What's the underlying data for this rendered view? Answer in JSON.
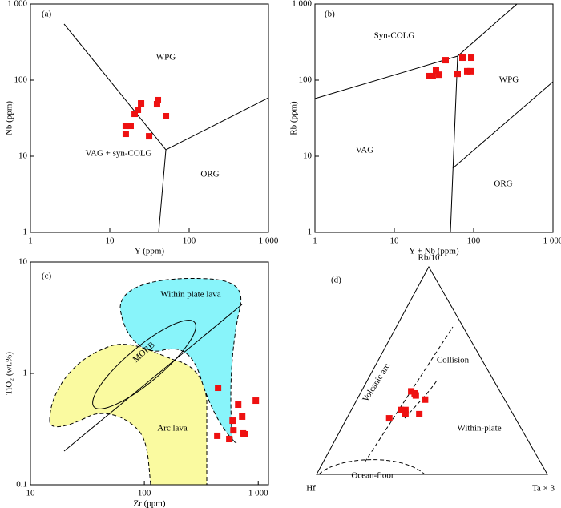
{
  "chart_data": [
    {
      "type": "scatter",
      "x_label": "Y (ppm)",
      "y_label": "Nb (ppm)",
      "log_x": true,
      "log_y": true,
      "xlim": [
        1,
        1000
      ],
      "ylim": [
        1,
        1000
      ],
      "xticks": [
        1,
        10,
        100,
        {
          "value": 1000,
          "label": "1 000"
        }
      ],
      "yticks": [
        1,
        10,
        100,
        {
          "value": 1000,
          "label": "1 000"
        }
      ],
      "color": "#ee1111",
      "x": [
        15.9,
        18.3,
        15.9,
        20.6,
        22.6,
        24.8,
        31.3,
        39.4,
        40.4,
        51
      ],
      "y": [
        25.1,
        25.1,
        19.7,
        36.1,
        40.8,
        49.5,
        18.3,
        48.3,
        54.6,
        33.6
      ],
      "annotations": [
        "(a)",
        "WPG",
        "VAG + syn-COLG",
        "ORG"
      ]
    },
    {
      "type": "scatter",
      "x_label": "Y + Nb (ppm)",
      "y_label": "Rb (ppm)",
      "log_x": true,
      "log_y": true,
      "xlim": [
        1,
        1000
      ],
      "ylim": [
        1,
        1000
      ],
      "xticks": [
        1,
        10,
        100,
        {
          "value": 1000,
          "label": "1 000"
        }
      ],
      "yticks": [
        1,
        10,
        100,
        {
          "value": 1000,
          "label": "1 000"
        }
      ],
      "color": "#ee1111",
      "x": [
        27.2,
        30.5,
        33.5,
        36.8,
        44.3,
        62.8,
        72.2,
        83,
        91.2,
        93.3
      ],
      "y": [
        113,
        113,
        134,
        118,
        183,
        121,
        197,
        131,
        131,
        197
      ],
      "annotations": [
        "(b)",
        "Syn-COLG",
        "WPG",
        "VAG",
        "ORG"
      ]
    },
    {
      "type": "scatter",
      "x_label": "Zr (ppm)",
      "y_label": "TiO₂ (wt.%)",
      "log_x": true,
      "log_y": true,
      "xlim": [
        10,
        1230
      ],
      "ylim": [
        0.1,
        10
      ],
      "xticks": [
        10,
        100,
        {
          "value": 1000,
          "label": "1 000"
        }
      ],
      "yticks": [
        0.1,
        1,
        10
      ],
      "color": "#ee1111",
      "x": [
        444,
        437,
        557,
        596,
        606,
        667,
        723,
        735,
        758,
        952
      ],
      "y": [
        0.742,
        0.275,
        0.257,
        0.376,
        0.308,
        0.524,
        0.409,
        0.289,
        0.284,
        0.569
      ],
      "annotations": [
        "(c)",
        "Within plate lava",
        "MORB",
        "Arc lava"
      ]
    },
    {
      "type": "ternary",
      "components": [
        "Rb/10",
        "Hf",
        "Ta × 3"
      ],
      "color": "#ee1111",
      "values": [
        [
          27,
          55,
          18
        ],
        [
          31,
          48,
          21
        ],
        [
          29,
          47,
          24
        ],
        [
          31,
          46,
          23
        ],
        [
          40,
          39,
          21
        ],
        [
          39,
          38,
          23
        ],
        [
          38,
          38,
          24
        ],
        [
          29,
          41,
          30
        ],
        [
          36,
          35,
          29
        ]
      ],
      "annotations": [
        "(d)",
        "Collision",
        "Volcanic arc",
        "Within-plate",
        "Ocean-floor"
      ]
    }
  ]
}
